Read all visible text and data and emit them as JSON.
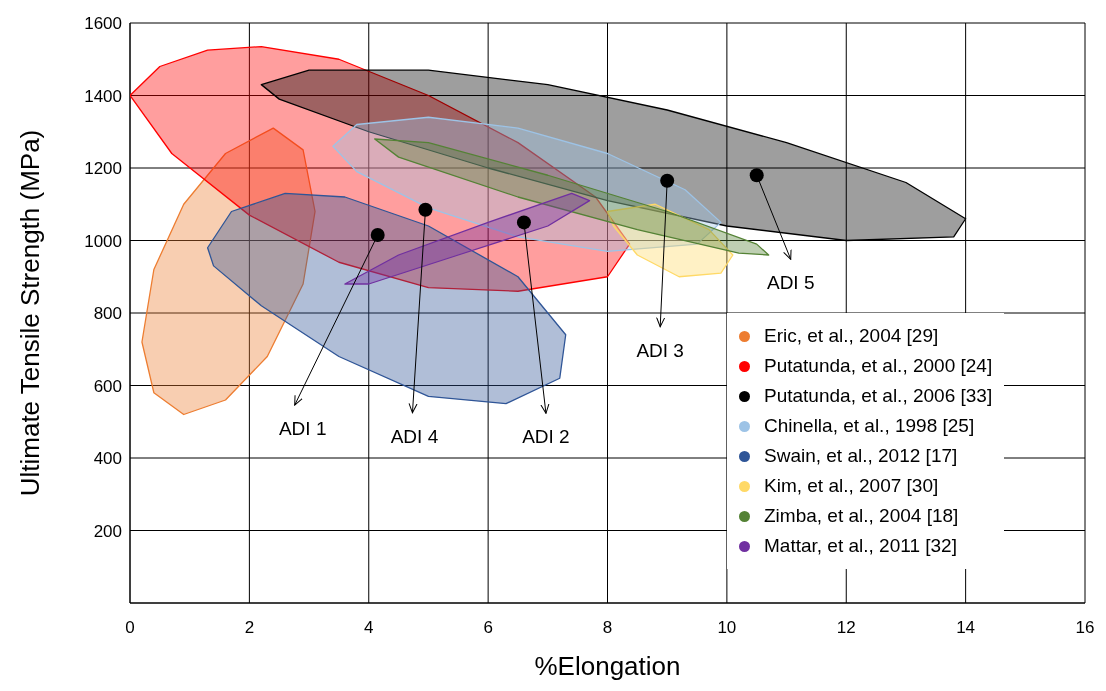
{
  "chart_data": {
    "type": "area",
    "xlabel": "%Elongation",
    "ylabel": "Ultimate Tensile Strength (MPa)",
    "xlim": [
      0,
      16
    ],
    "xticks": [
      0,
      2,
      4,
      6,
      8,
      10,
      12,
      14,
      16
    ],
    "ylim": [
      0,
      1600
    ],
    "yticks": [
      200,
      400,
      600,
      800,
      1000,
      1200,
      1400,
      1600
    ],
    "grid": true,
    "legend": "bottom right",
    "series": [
      {
        "name": "Eric, et al., 2004 [29]",
        "color": "#ed7d31",
        "x": [
          2.4,
          2.9,
          3.1,
          2.9,
          2.3,
          1.6,
          0.9,
          0.4,
          0.2,
          0.4,
          0.9,
          1.6
        ],
        "values": [
          1310,
          1250,
          1080,
          880,
          680,
          560,
          520,
          580,
          720,
          920,
          1100,
          1240
        ]
      },
      {
        "name": "Putatunda, et al., 2000 [24]",
        "color": "#ff0000",
        "x": [
          0,
          0.5,
          1.3,
          2.2,
          3.5,
          5,
          6.5,
          7.8,
          8.37,
          8,
          6.5,
          5,
          3.5,
          2,
          0.7
        ],
        "values": [
          1400,
          1480,
          1525,
          1535,
          1500,
          1400,
          1270,
          1120,
          990,
          900,
          860,
          870,
          940,
          1070,
          1240
        ]
      },
      {
        "name": "Putatunda, et al., 2006 [33]",
        "color": "#000000",
        "x": [
          2.2,
          3,
          5,
          7,
          9,
          11,
          13,
          14,
          13.8,
          12,
          10,
          8,
          6,
          4,
          2.5
        ],
        "values": [
          1430,
          1470,
          1470,
          1430,
          1360,
          1270,
          1160,
          1060,
          1010,
          1000,
          1040,
          1110,
          1200,
          1300,
          1390
        ]
      },
      {
        "name": "Chinella, et al., 1998 [25]",
        "color": "#9dc3e6",
        "x": [
          3.4,
          3.8,
          5,
          6.5,
          8,
          9.3,
          9.9,
          9.5,
          8,
          6.5,
          5,
          3.8
        ],
        "values": [
          1260,
          1320,
          1340,
          1310,
          1240,
          1140,
          1050,
          990,
          970,
          1010,
          1090,
          1190
        ]
      },
      {
        "name": "Swain, et al., 2012 [17]",
        "color": "#2f5597",
        "x": [
          1.3,
          1.7,
          2.6,
          3.6,
          5,
          6.5,
          7.3,
          7.2,
          6.3,
          5,
          3.5,
          2.2,
          1.4
        ],
        "values": [
          980,
          1080,
          1130,
          1120,
          1040,
          900,
          740,
          620,
          550,
          570,
          680,
          820,
          930
        ]
      },
      {
        "name": "Kim, et al., 2007 [30]",
        "color": "#ffd966",
        "x": [
          8,
          8.8,
          9.7,
          10.1,
          9.9,
          9.2,
          8.5,
          8.1
        ],
        "values": [
          1080,
          1100,
          1030,
          960,
          910,
          900,
          960,
          1040
        ]
      },
      {
        "name": "Zimba, et al., 2004 [18]",
        "color": "#548235",
        "x": [
          4.1,
          5,
          7,
          9,
          10.5,
          10.7,
          10.2,
          8.5,
          6.5,
          4.5
        ],
        "values": [
          1280,
          1270,
          1180,
          1080,
          990,
          960,
          965,
          1030,
          1120,
          1230
        ]
      },
      {
        "name": "Mattar, et al., 2011 [32]",
        "color": "#7030a0",
        "x": [
          3.6,
          4.5,
          6,
          7.4,
          7.7,
          7,
          5.5,
          4
        ],
        "values": [
          880,
          960,
          1050,
          1130,
          1110,
          1040,
          960,
          880
        ]
      },
      {
        "type": "scatter",
        "marker": "circle",
        "color": "#000000",
        "x": [
          4.15,
          4.95,
          6.6,
          9,
          10.5
        ],
        "values": [
          1015,
          1085,
          1050,
          1165,
          1180
        ]
      }
    ],
    "annotations": [
      {
        "text": "ADI 1",
        "x": 4.15,
        "y": 1015
      },
      {
        "text": "ADI 4",
        "x": 4.95,
        "y": 1085
      },
      {
        "text": "ADI 2",
        "x": 6.6,
        "y": 1050
      },
      {
        "text": "ADI 3",
        "x": 9,
        "y": 1165
      },
      {
        "text": "ADI 5",
        "x": 10.5,
        "y": 1180
      }
    ]
  }
}
